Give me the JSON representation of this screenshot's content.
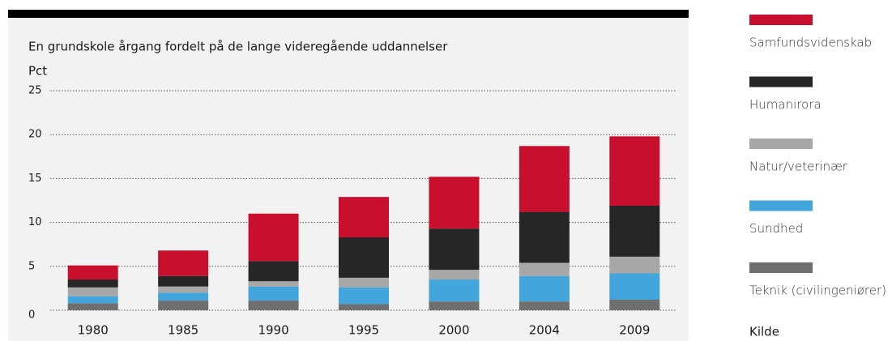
{
  "chart_data": {
    "type": "stacked_bar",
    "title": "En grundskole årgang fordelt på de lange videregående uddannelser",
    "y_label": "Pct",
    "source": "Kilde",
    "categories": [
      "1980",
      "1985",
      "1990",
      "1995",
      "2000",
      "2004",
      "2009"
    ],
    "series": [
      {
        "name": "Teknik (civilingeniører)",
        "color": "#6f6f6f",
        "values": [
          0.8,
          1.1,
          1.1,
          0.7,
          1.0,
          1.0,
          1.2
        ]
      },
      {
        "name": "Sundhed",
        "color": "#42a5db",
        "values": [
          0.8,
          0.9,
          1.6,
          1.9,
          2.5,
          2.9,
          3.0
        ]
      },
      {
        "name": "Natur/veterinær",
        "color": "#a7a7a7",
        "values": [
          1.0,
          0.7,
          0.6,
          1.1,
          1.1,
          1.5,
          1.9
        ]
      },
      {
        "name": "Humanirora",
        "color": "#262626",
        "values": [
          0.9,
          1.2,
          2.3,
          4.6,
          4.7,
          5.8,
          5.8
        ]
      },
      {
        "name": "Samfundsvidenskab",
        "color": "#c8102e",
        "values": [
          1.6,
          2.9,
          5.4,
          4.6,
          5.9,
          7.5,
          7.9
        ]
      }
    ],
    "ylim": [
      0,
      25
    ],
    "yticks": [
      0,
      5,
      10,
      15,
      20,
      25
    ],
    "grid": true
  }
}
